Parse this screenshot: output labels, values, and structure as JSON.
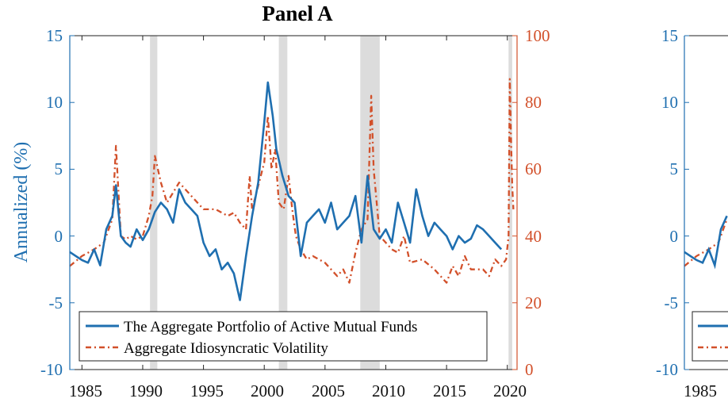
{
  "panel_a": {
    "title": "Panel A",
    "ylabel_left": "Annualized (%)",
    "left_ticks": [
      "15",
      "10",
      "5",
      "0",
      "-5",
      "-10"
    ],
    "right_ticks": [
      "100",
      "80",
      "60",
      "40",
      "20",
      "0"
    ],
    "x_ticks": [
      "1985",
      "1990",
      "1995",
      "2000",
      "2005",
      "2010",
      "2015",
      "2020"
    ],
    "legend": {
      "fund_label": "The Aggregate Portfolio of Active Mutual Funds",
      "vol_label": "Aggregate Idiosyncratic Volatility"
    }
  },
  "panel_b_partial": {
    "left_ticks": [
      "15",
      "10",
      "5",
      "0",
      "-5",
      "-10"
    ],
    "x_ticks": [
      "1985"
    ]
  },
  "colors": {
    "fund": "#1f6fb0",
    "vol": "#d2502a",
    "recession": "#dcdcdc"
  },
  "chart_data": {
    "type": "line",
    "title": "Panel A",
    "xlabel": "",
    "ylabel": "Annualized (%)",
    "xlim": [
      1984.0,
      2020.8
    ],
    "ylim_left": [
      -10,
      15
    ],
    "ylim_right": [
      0,
      100
    ],
    "recessions": [
      [
        1990.6,
        1991.2
      ],
      [
        2001.2,
        2001.9
      ],
      [
        2007.9,
        2009.5
      ],
      [
        2020.1,
        2020.4
      ]
    ],
    "series": [
      {
        "name": "The Aggregate Portfolio of Active Mutual Funds",
        "axis": "left",
        "style": "solid",
        "x": [
          1984.0,
          1984.5,
          1985.0,
          1985.5,
          1986.0,
          1986.5,
          1987.0,
          1987.5,
          1987.8,
          1988.2,
          1988.6,
          1989.0,
          1989.5,
          1990.0,
          1990.5,
          1991.0,
          1991.5,
          1992.0,
          1992.5,
          1993.0,
          1993.5,
          1994.0,
          1994.5,
          1995.0,
          1995.5,
          1996.0,
          1996.5,
          1997.0,
          1997.5,
          1998.0,
          1998.5,
          1999.0,
          1999.5,
          2000.0,
          2000.3,
          2000.7,
          2001.0,
          2001.5,
          2002.0,
          2002.5,
          2003.0,
          2003.5,
          2004.0,
          2004.5,
          2005.0,
          2005.5,
          2006.0,
          2006.5,
          2007.0,
          2007.5,
          2008.0,
          2008.5,
          2009.0,
          2009.5,
          2010.0,
          2010.5,
          2011.0,
          2011.5,
          2012.0,
          2012.5,
          2013.0,
          2013.5,
          2014.0,
          2014.5,
          2015.0,
          2015.5,
          2016.0,
          2016.5,
          2017.0,
          2017.5,
          2018.0,
          2018.5,
          2019.0,
          2019.5
        ],
        "values": [
          -1.2,
          -1.5,
          -1.8,
          -2.0,
          -1.0,
          -2.2,
          0.5,
          1.5,
          3.8,
          0.0,
          -0.5,
          -0.8,
          0.5,
          -0.3,
          0.5,
          1.8,
          2.5,
          2.0,
          1.0,
          3.5,
          2.5,
          2.0,
          1.5,
          -0.5,
          -1.5,
          -1.0,
          -2.5,
          -2.0,
          -2.8,
          -4.8,
          -1.5,
          1.5,
          4.0,
          8.5,
          11.5,
          9.0,
          6.5,
          4.5,
          3.0,
          2.5,
          -1.5,
          1.0,
          1.5,
          2.0,
          1.0,
          2.5,
          0.5,
          1.0,
          1.5,
          3.0,
          -0.5,
          4.5,
          0.5,
          -0.2,
          0.5,
          -0.5,
          2.5,
          1.0,
          -0.5,
          3.5,
          1.5,
          0.0,
          1.0,
          0.5,
          0.0,
          -1.0,
          0.0,
          -0.5,
          -0.2,
          0.8,
          0.5,
          0.0,
          -0.5,
          -1.0
        ]
      },
      {
        "name": "Aggregate Idiosyncratic Volatility",
        "axis": "right",
        "style": "dashed",
        "x": [
          1984.0,
          1985.0,
          1986.0,
          1986.8,
          1987.5,
          1987.8,
          1988.2,
          1988.6,
          1989.0,
          1989.5,
          1990.0,
          1990.5,
          1990.8,
          1991.0,
          1991.5,
          1992.0,
          1993.0,
          1994.0,
          1995.0,
          1996.0,
          1997.0,
          1997.5,
          1998.0,
          1998.5,
          1998.8,
          1999.0,
          1999.5,
          2000.0,
          2000.3,
          2000.6,
          2000.9,
          2001.2,
          2001.6,
          2002.0,
          2002.3,
          2002.6,
          2003.0,
          2003.5,
          2004.0,
          2005.0,
          2005.5,
          2006.0,
          2006.5,
          2007.0,
          2007.5,
          2008.0,
          2008.5,
          2008.8,
          2009.0,
          2009.5,
          2010.0,
          2010.5,
          2011.0,
          2011.5,
          2012.0,
          2013.0,
          2014.0,
          2015.0,
          2015.5,
          2016.0,
          2016.5,
          2017.0,
          2018.0,
          2018.5,
          2019.0,
          2019.5,
          2019.9,
          2020.1,
          2020.2,
          2020.3,
          2020.4,
          2020.5
        ],
        "values": [
          31,
          34,
          36,
          38,
          45,
          67,
          40,
          39,
          40,
          39,
          40,
          46,
          52,
          64,
          56,
          50,
          56,
          52,
          48,
          48,
          46,
          47,
          44,
          42,
          58,
          48,
          55,
          62,
          76,
          60,
          66,
          50,
          48,
          58,
          48,
          40,
          36,
          33,
          34,
          32,
          30,
          28,
          30,
          26,
          35,
          42,
          45,
          82,
          60,
          40,
          38,
          36,
          35,
          40,
          32,
          33,
          30,
          26,
          31,
          28,
          34,
          30,
          30,
          28,
          33,
          31,
          33,
          40,
          87,
          70,
          55,
          48
        ]
      }
    ],
    "legend": "bottom-left"
  }
}
